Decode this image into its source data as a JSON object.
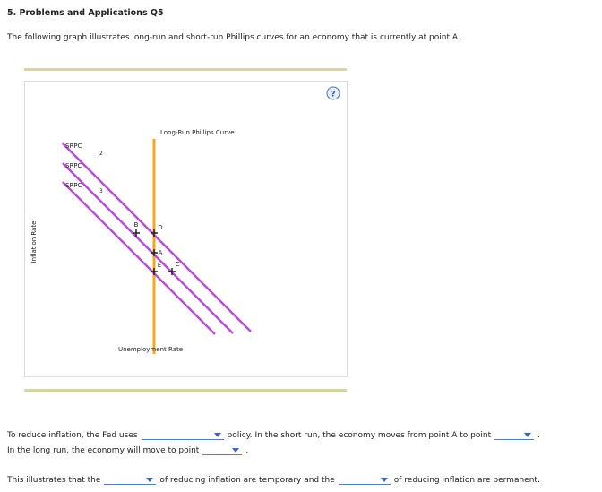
{
  "header": {
    "title": "5. Problems and Applications Q5"
  },
  "intro": "The following graph illustrates long-run and short-run Phillips curves for an economy that is currently at point A.",
  "graph": {
    "help": "?",
    "lrpc_label": "Long-Run Phillips Curve",
    "srpc_labels": [
      {
        "text": "SRPC",
        "sub": "2"
      },
      {
        "text": "SRPC"
      },
      {
        "text": "SRPC",
        "sub": "3"
      }
    ],
    "points": [
      "B",
      "D",
      "A",
      "E",
      "C"
    ],
    "x_axis": "Unemployment Rate",
    "y_axis": "Inflation Rate"
  },
  "questions": [
    [
      "To reduce inflation, the Fed uses",
      "policy. In the short run, the economy moves from point A to point",
      "."
    ],
    [
      "In the long run, the economy will move to point",
      "."
    ],
    [
      "This illustrates that the",
      "of reducing inflation are temporary and the",
      "of reducing inflation are permanent."
    ]
  ]
}
